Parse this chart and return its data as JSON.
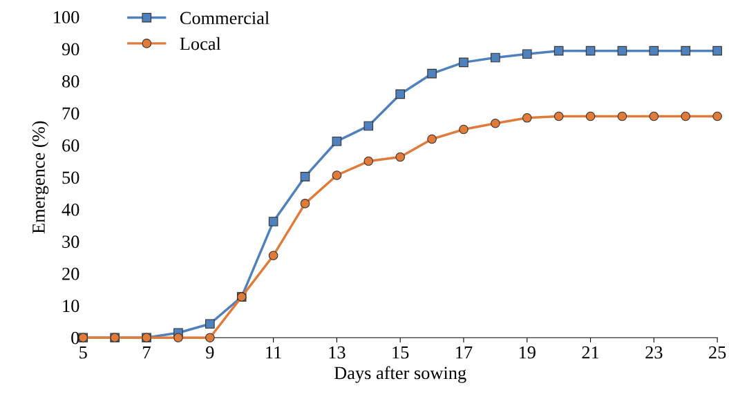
{
  "chart_data": {
    "type": "line",
    "xlabel": "Days after sowing",
    "ylabel": "Emergence (%)",
    "x": [
      5,
      6,
      7,
      8,
      9,
      10,
      11,
      12,
      13,
      14,
      15,
      16,
      17,
      18,
      19,
      20,
      21,
      22,
      23,
      24,
      25
    ],
    "series": [
      {
        "name": "Commercial",
        "color": "#4f81bd",
        "marker": "square",
        "values": [
          0,
          0,
          0,
          1.5,
          4.3,
          12.7,
          36.2,
          50.2,
          61.2,
          66,
          75.9,
          82.3,
          85.8,
          87.3,
          88.4,
          89.4,
          89.4,
          89.4,
          89.4,
          89.4,
          89.4
        ]
      },
      {
        "name": "Local",
        "color": "#e07b39",
        "marker": "circle",
        "values": [
          0,
          0,
          0,
          0,
          0,
          12.7,
          25.6,
          41.8,
          50.6,
          55,
          56.3,
          61.9,
          64.9,
          66.8,
          68.5,
          69,
          69,
          69,
          69,
          69,
          69
        ]
      }
    ],
    "xlim": [
      5,
      25
    ],
    "xticks": [
      5,
      7,
      9,
      11,
      13,
      15,
      17,
      19,
      21,
      23,
      25
    ],
    "ylim": [
      0,
      100
    ],
    "yticks": [
      0,
      10,
      20,
      30,
      40,
      50,
      60,
      70,
      80,
      90,
      100
    ],
    "grid": false,
    "legend": "top left",
    "line_style": "solid"
  }
}
